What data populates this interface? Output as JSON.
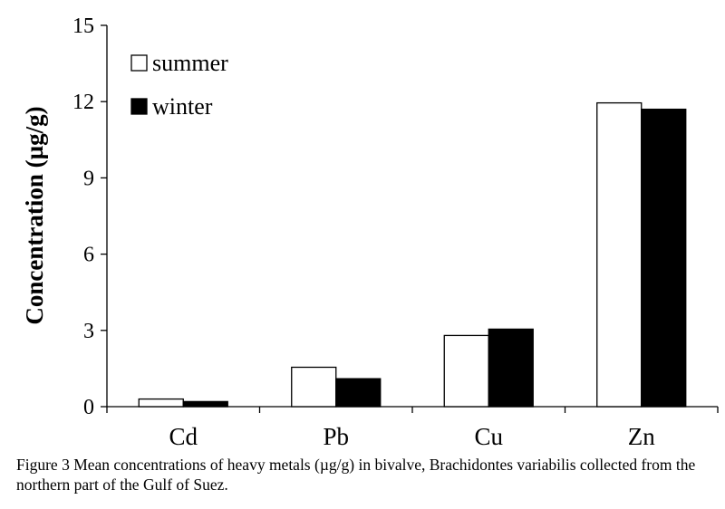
{
  "chart_data": {
    "type": "bar",
    "title": "",
    "xlabel": "",
    "ylabel": "Concentration (µg/g)",
    "categories": [
      "Cd",
      "Pb",
      "Cu",
      "Zn"
    ],
    "series": [
      {
        "name": "summer",
        "values": [
          0.3,
          1.55,
          2.8,
          11.95
        ],
        "color": "#ffffff",
        "edge": "#000000"
      },
      {
        "name": "winter",
        "values": [
          0.2,
          1.1,
          3.05,
          11.7
        ],
        "color": "#000000",
        "edge": "#000000"
      }
    ],
    "ylim": [
      0,
      15
    ],
    "yticks": [
      0,
      3,
      6,
      9,
      12,
      15
    ],
    "grid": false,
    "legend_position": "top-left"
  },
  "caption": "Figure 3 Mean concentrations of heavy metals (µg/g) in bivalve, Brachidontes variabilis collected from the northern part of the Gulf of Suez."
}
